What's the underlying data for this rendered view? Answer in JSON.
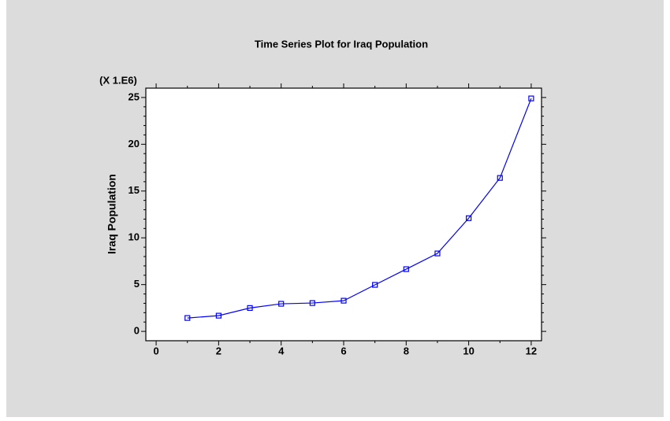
{
  "chart_data": {
    "type": "line",
    "title": "Time Series Plot for Iraq Population",
    "ylabel": "Iraq Population",
    "axis_multiplier": "(X 1.E6)",
    "x": [
      1,
      2,
      3,
      4,
      5,
      6,
      7,
      8,
      9,
      10,
      11,
      12
    ],
    "series": [
      {
        "name": "Iraq Population",
        "color": "#0000ff",
        "values": [
          1.43,
          1.68,
          2.5,
          2.95,
          3.03,
          3.28,
          4.97,
          6.65,
          8.33,
          12.1,
          16.4,
          24.9
        ]
      }
    ],
    "xlim": [
      -0.33,
      12.33
    ],
    "xticks": [
      0,
      2,
      4,
      6,
      8,
      10,
      12
    ],
    "xminorticks": [
      1,
      3,
      5,
      7,
      9,
      11
    ],
    "ylim": [
      -1,
      26
    ],
    "yticks": [
      0,
      5,
      10,
      15,
      20,
      25
    ],
    "yminorticks": [
      1,
      2,
      3,
      4,
      6,
      7,
      8,
      9,
      11,
      12,
      13,
      14,
      16,
      17,
      18,
      19,
      21,
      22,
      23,
      24
    ],
    "grid": false
  }
}
